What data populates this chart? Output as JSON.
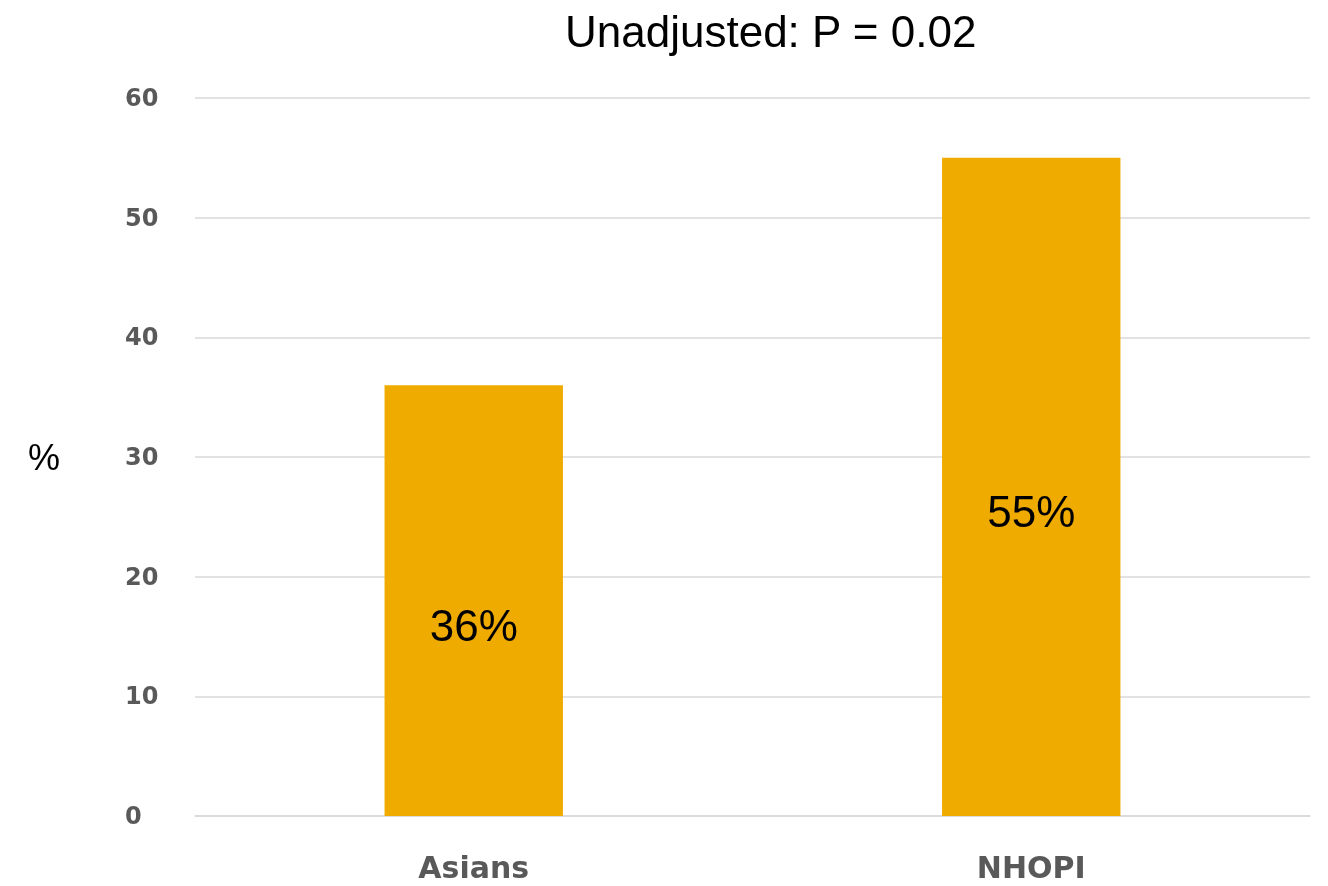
{
  "chart_data": {
    "type": "bar",
    "title": "Unadjusted: P = 0.02",
    "ylabel": "%",
    "categories": [
      "Asians",
      "NHOPI"
    ],
    "values": [
      36,
      55
    ],
    "color": "#f0ab00",
    "value_labels": [
      "36%",
      "55%"
    ],
    "ylim": [
      0,
      60
    ],
    "yticks": [
      0,
      10,
      20,
      30,
      40,
      50,
      60
    ],
    "grid": "y"
  }
}
